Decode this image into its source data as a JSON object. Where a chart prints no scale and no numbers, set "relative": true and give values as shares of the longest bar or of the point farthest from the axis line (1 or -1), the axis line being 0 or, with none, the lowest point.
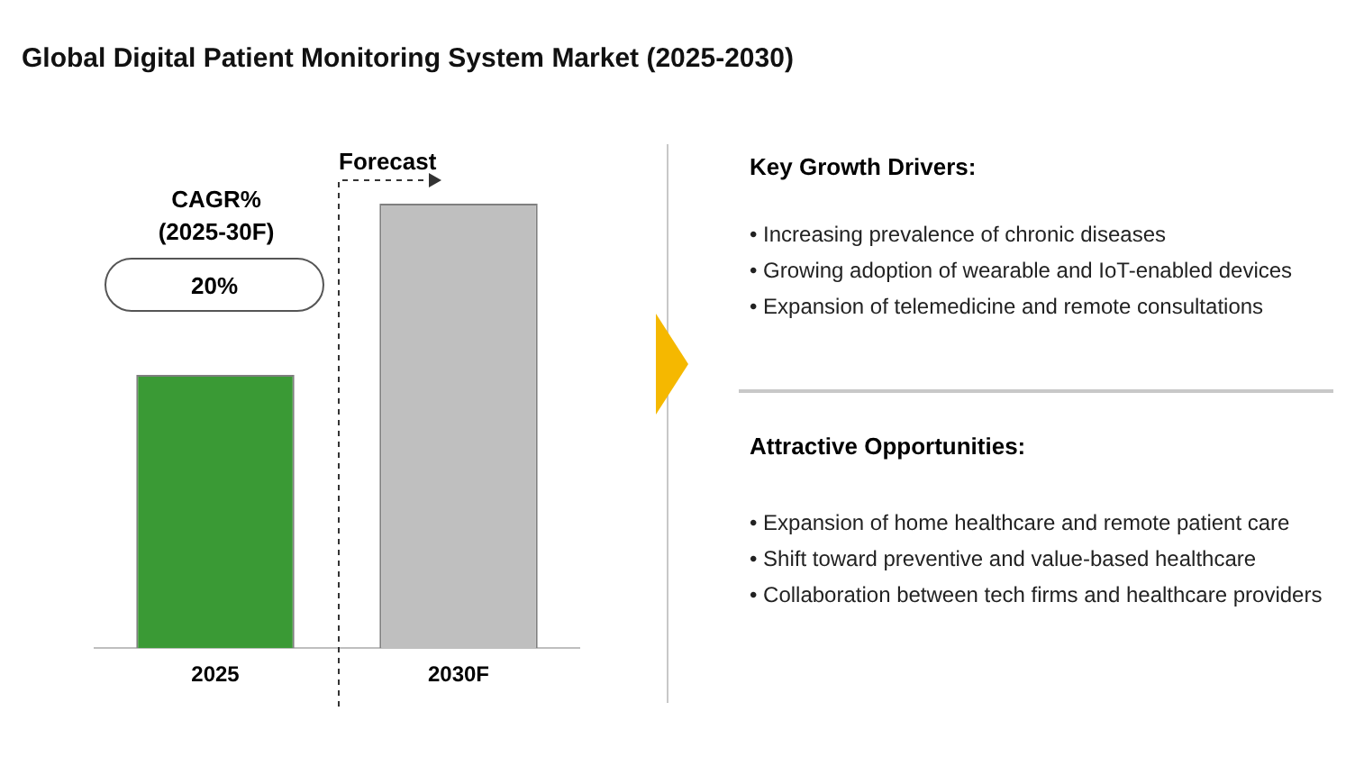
{
  "chart_data": {
    "type": "bar",
    "title": "Global Digital Patient Monitoring System Market (2025-2030)",
    "categories": [
      "2025",
      "2030F"
    ],
    "relative": true,
    "series": [
      {
        "colors": [
          "#3a9a35",
          "#bfbfbf"
        ],
        "values": [
          0.615,
          1
        ]
      }
    ],
    "annotations": [
      "CAGR% (2025-30F)",
      "20%",
      "Forecast",
      "Key Growth Drivers:",
      "• Increasing prevalence of chronic diseases",
      "• Growing adoption of wearable and IoT-enabled devices",
      "• Expansion of telemedicine and remote consultations",
      "Attractive Opportunities:",
      "• Expansion of home healthcare and remote patient care",
      "• Shift toward preventive and value-based healthcare",
      "• Collaboration between tech firms and healthcare providers"
    ]
  }
}
